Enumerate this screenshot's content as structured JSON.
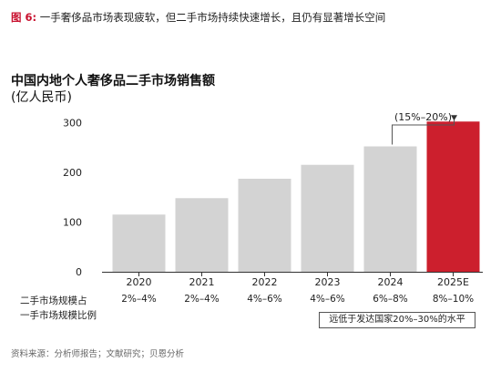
{
  "figure": {
    "label": "图 6:",
    "title": "一手奢侈品市场表现疲软，但二手市场持续快速增长，且仍有显著增长空间"
  },
  "chart_data": {
    "type": "bar",
    "title": "中国内地个人奢侈品二手市场销售额",
    "unit": "(亿人民币)",
    "categories": [
      "2020",
      "2021",
      "2022",
      "2023",
      "2024",
      "2025E"
    ],
    "values": [
      115,
      148,
      187,
      215,
      252,
      302
    ],
    "yticks": [
      0,
      100,
      200,
      300
    ],
    "ylim": [
      0,
      330
    ],
    "grid": false,
    "bar_color": "#d3d3d3",
    "highlight_color": "#cc1f2d",
    "highlight_index": 5,
    "growth_annotation": "(15%–20%)"
  },
  "share_row": {
    "label_line1": "二手市场规模占",
    "label_line2": "一手市场规模比例",
    "values": [
      "2%–4%",
      "2%–4%",
      "4%–6%",
      "4%–6%",
      "6%–8%",
      "8%–10%"
    ]
  },
  "note": "远低于发达国家20%–30%的水平",
  "source": "资料来源：分析师报告；文献研究；贝恩分析"
}
